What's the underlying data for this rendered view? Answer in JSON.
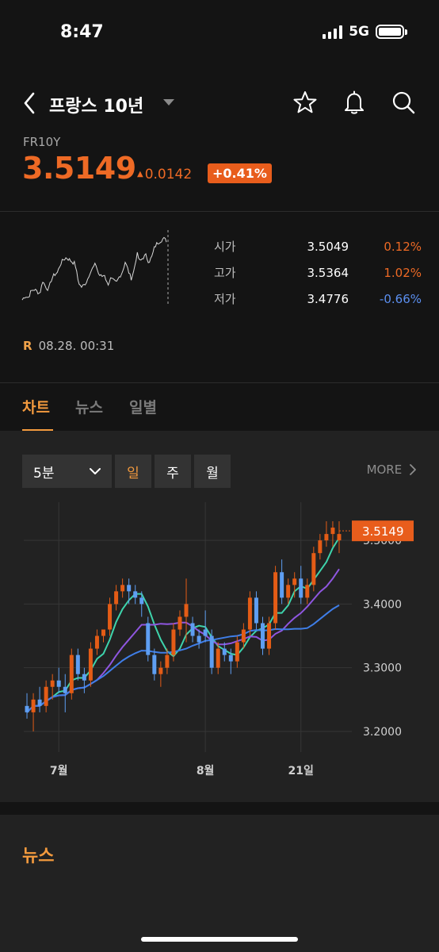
{
  "status_bar": {
    "time": "8:47",
    "network": "5G"
  },
  "header": {
    "title": "프랑스 10년",
    "icons": [
      "back-chevron-icon",
      "dropdown-caret-icon",
      "star-icon",
      "bell-icon",
      "search-icon"
    ]
  },
  "quote": {
    "ticker": "FR10Y",
    "price": "3.5149",
    "change": "0.0142",
    "change_pct": "+0.41%",
    "up_color": "#ee6a25"
  },
  "ohl": [
    {
      "label": "시가",
      "value": "3.5049",
      "pct": "0.12%",
      "dir": "up"
    },
    {
      "label": "고가",
      "value": "3.5364",
      "pct": "1.02%",
      "dir": "up"
    },
    {
      "label": "저가",
      "value": "3.4776",
      "pct": "-0.66%",
      "dir": "down"
    }
  ],
  "timestamp": {
    "marker": "R",
    "text": "08.28.  00:31"
  },
  "tabs": [
    {
      "label": "차트",
      "active": true
    },
    {
      "label": "뉴스",
      "active": false
    },
    {
      "label": "일별",
      "active": false
    }
  ],
  "chart_controls": {
    "interval": "5분",
    "periods": [
      {
        "label": "일",
        "selected": true
      },
      {
        "label": "주",
        "selected": false
      },
      {
        "label": "월",
        "selected": false
      }
    ],
    "more": "MORE"
  },
  "chart_data": {
    "type": "candlestick",
    "y_ticks": [
      "3.5000",
      "3.4000",
      "3.3000",
      "3.2000"
    ],
    "ylim": [
      3.18,
      3.55
    ],
    "x_labels": [
      {
        "label": "7월",
        "index": 5
      },
      {
        "label": "8월",
        "index": 28
      },
      {
        "label": "21일",
        "index": 43
      }
    ],
    "current_price": "3.5149",
    "candles": [
      [
        3.24,
        3.26,
        3.22,
        3.23
      ],
      [
        3.23,
        3.26,
        3.2,
        3.25
      ],
      [
        3.25,
        3.27,
        3.23,
        3.24
      ],
      [
        3.24,
        3.28,
        3.23,
        3.27
      ],
      [
        3.27,
        3.29,
        3.25,
        3.28
      ],
      [
        3.28,
        3.3,
        3.26,
        3.27
      ],
      [
        3.27,
        3.29,
        3.23,
        3.26
      ],
      [
        3.26,
        3.33,
        3.25,
        3.32
      ],
      [
        3.32,
        3.33,
        3.28,
        3.29
      ],
      [
        3.29,
        3.3,
        3.26,
        3.28
      ],
      [
        3.28,
        3.34,
        3.27,
        3.33
      ],
      [
        3.33,
        3.36,
        3.32,
        3.35
      ],
      [
        3.35,
        3.36,
        3.34,
        3.36
      ],
      [
        3.36,
        3.41,
        3.35,
        3.4
      ],
      [
        3.4,
        3.43,
        3.39,
        3.42
      ],
      [
        3.42,
        3.44,
        3.41,
        3.43
      ],
      [
        3.43,
        3.44,
        3.4,
        3.42
      ],
      [
        3.42,
        3.43,
        3.4,
        3.41
      ],
      [
        3.41,
        3.42,
        3.38,
        3.4
      ],
      [
        3.37,
        3.38,
        3.31,
        3.32
      ],
      [
        3.32,
        3.33,
        3.28,
        3.29
      ],
      [
        3.29,
        3.31,
        3.27,
        3.3
      ],
      [
        3.3,
        3.33,
        3.29,
        3.32
      ],
      [
        3.32,
        3.37,
        3.31,
        3.36
      ],
      [
        3.36,
        3.39,
        3.35,
        3.38
      ],
      [
        3.38,
        3.44,
        3.34,
        3.4
      ],
      [
        3.37,
        3.38,
        3.34,
        3.35
      ],
      [
        3.35,
        3.36,
        3.33,
        3.34
      ],
      [
        3.36,
        3.39,
        3.34,
        3.35
      ],
      [
        3.35,
        3.36,
        3.29,
        3.3
      ],
      [
        3.3,
        3.34,
        3.29,
        3.33
      ],
      [
        3.33,
        3.34,
        3.31,
        3.32
      ],
      [
        3.32,
        3.33,
        3.29,
        3.31
      ],
      [
        3.31,
        3.35,
        3.3,
        3.34
      ],
      [
        3.34,
        3.37,
        3.33,
        3.36
      ],
      [
        3.36,
        3.42,
        3.35,
        3.41
      ],
      [
        3.41,
        3.42,
        3.36,
        3.37
      ],
      [
        3.37,
        3.38,
        3.32,
        3.33
      ],
      [
        3.33,
        3.38,
        3.32,
        3.37
      ],
      [
        3.37,
        3.46,
        3.36,
        3.45
      ],
      [
        3.45,
        3.47,
        3.4,
        3.41
      ],
      [
        3.41,
        3.44,
        3.4,
        3.43
      ],
      [
        3.43,
        3.45,
        3.41,
        3.44
      ],
      [
        3.44,
        3.46,
        3.4,
        3.41
      ],
      [
        3.41,
        3.44,
        3.4,
        3.43
      ],
      [
        3.43,
        3.49,
        3.42,
        3.48
      ],
      [
        3.48,
        3.51,
        3.47,
        3.5
      ],
      [
        3.5,
        3.53,
        3.49,
        3.51
      ],
      [
        3.51,
        3.53,
        3.49,
        3.52
      ],
      [
        3.5,
        3.53,
        3.48,
        3.51
      ]
    ],
    "up_color": "#e45c16",
    "down_color": "#5e9ef2",
    "ma_colors": [
      "#3ed4ac",
      "#8f56e0",
      "#3f7ee8"
    ]
  }
}
